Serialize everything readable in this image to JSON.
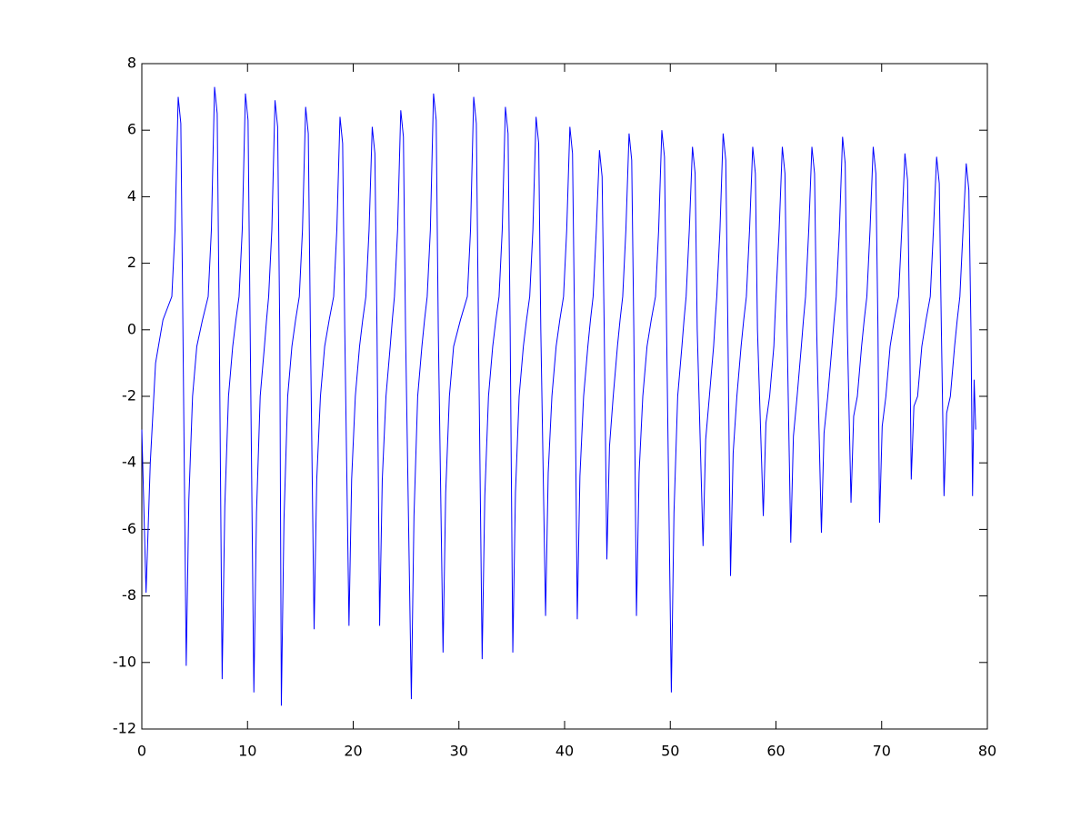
{
  "chart_data": {
    "type": "line",
    "x": [
      0,
      0.4,
      0.8,
      1.3,
      2.0,
      2.84,
      3.14,
      3.44,
      3.69,
      3.89,
      4.2,
      4.45,
      4.8,
      5.2,
      5.74,
      6.28,
      6.58,
      6.88,
      7.13,
      7.33,
      7.6,
      7.85,
      8.2,
      8.6,
      8.9,
      9.2,
      9.5,
      9.8,
      10.05,
      10.25,
      10.6,
      10.85,
      11.2,
      11.6,
      11.8,
      12.0,
      12.3,
      12.6,
      12.85,
      13.05,
      13.2,
      13.45,
      13.8,
      14.2,
      14.55,
      14.9,
      15.2,
      15.5,
      15.75,
      15.95,
      16.3,
      16.55,
      16.9,
      17.3,
      17.73,
      18.15,
      18.45,
      18.75,
      19.0,
      19.2,
      19.6,
      19.85,
      20.2,
      20.6,
      20.9,
      21.2,
      21.5,
      21.8,
      22.05,
      22.25,
      22.5,
      22.75,
      23.1,
      23.5,
      23.7,
      23.9,
      24.2,
      24.5,
      24.75,
      24.95,
      25.5,
      25.75,
      26.1,
      26.5,
      26.75,
      27.0,
      27.3,
      27.6,
      27.85,
      28.05,
      28.5,
      28.75,
      29.1,
      29.5,
      30.15,
      30.8,
      31.1,
      31.4,
      31.65,
      31.85,
      32.2,
      32.45,
      32.8,
      33.2,
      33.5,
      33.8,
      34.1,
      34.4,
      34.65,
      34.85,
      35.1,
      35.35,
      35.7,
      36.1,
      36.4,
      36.7,
      37.0,
      37.3,
      37.55,
      37.75,
      38.2,
      38.45,
      38.8,
      39.2,
      39.55,
      39.9,
      40.2,
      40.5,
      40.75,
      40.95,
      41.2,
      41.45,
      41.8,
      42.2,
      42.45,
      42.7,
      43.0,
      43.3,
      43.55,
      43.75,
      44.0,
      44.25,
      44.6,
      45.0,
      45.25,
      45.5,
      45.8,
      46.1,
      46.35,
      46.55,
      46.8,
      47.05,
      47.4,
      47.8,
      48.2,
      48.6,
      48.9,
      49.2,
      49.45,
      49.65,
      50.1,
      50.35,
      50.7,
      51.1,
      51.3,
      51.5,
      51.8,
      52.1,
      52.35,
      52.55,
      53.1,
      53.35,
      53.7,
      54.1,
      54.25,
      54.4,
      54.7,
      55.0,
      55.25,
      55.45,
      55.7,
      55.95,
      56.3,
      56.7,
      56.95,
      57.2,
      57.5,
      57.8,
      58.05,
      58.25,
      58.8,
      59.05,
      59.4,
      59.8,
      59.9,
      60.0,
      60.3,
      60.6,
      60.85,
      61.05,
      61.4,
      61.65,
      62.0,
      62.4,
      62.6,
      62.8,
      63.1,
      63.4,
      63.65,
      63.85,
      64.3,
      64.55,
      64.9,
      65.3,
      65.5,
      65.7,
      66.0,
      66.3,
      66.55,
      66.75,
      67.1,
      67.35,
      67.7,
      68.1,
      68.35,
      68.6,
      68.9,
      69.2,
      69.45,
      69.65,
      69.8,
      70.05,
      70.4,
      70.8,
      71.2,
      71.6,
      71.9,
      72.2,
      72.45,
      72.65,
      72.8,
      73.05,
      73.4,
      73.8,
      74.2,
      74.6,
      74.9,
      75.2,
      75.45,
      75.65,
      75.9,
      76.15,
      76.5,
      76.9,
      77.15,
      77.4,
      77.7,
      78.0,
      78.25,
      78.45,
      78.6,
      78.75,
      78.9
    ],
    "series": [
      {
        "color": "#0000ff",
        "values": [
          -3,
          -7.9,
          -4,
          -1,
          0.3,
          1.0,
          3,
          7.0,
          6.2,
          0,
          -10.1,
          -5.1,
          -2,
          -0.5,
          0.3,
          1.0,
          3,
          7.3,
          6.5,
          0,
          -10.5,
          -5.3,
          -2,
          -0.5,
          0.3,
          1.0,
          3,
          7.1,
          6.3,
          0,
          -10.9,
          -5.5,
          -2,
          -0.5,
          0.3,
          1.0,
          3,
          6.9,
          6.1,
          0,
          -11.3,
          -5.7,
          -2,
          -0.5,
          0.3,
          1.0,
          3,
          6.7,
          5.9,
          0,
          -9.0,
          -4.5,
          -2,
          -0.5,
          0.3,
          1.0,
          3,
          6.4,
          5.6,
          0,
          -8.9,
          -4.5,
          -2,
          -0.5,
          0.3,
          1.0,
          3,
          6.1,
          5.3,
          0,
          -8.9,
          -4.5,
          -2,
          -0.5,
          0.3,
          1.0,
          3,
          6.6,
          5.8,
          0,
          -11.1,
          -5.6,
          -2,
          -0.5,
          0.3,
          1.0,
          3,
          7.1,
          6.3,
          0,
          -9.7,
          -4.9,
          -2,
          -0.5,
          0.3,
          1.0,
          3,
          7.0,
          6.2,
          0,
          -9.9,
          -5.0,
          -2,
          -0.5,
          0.3,
          1.0,
          3,
          6.7,
          5.9,
          0,
          -9.7,
          -4.9,
          -2,
          -0.5,
          0.3,
          1.0,
          3,
          6.4,
          5.6,
          0,
          -8.6,
          -4.3,
          -2,
          -0.5,
          0.3,
          1.0,
          3,
          6.1,
          5.3,
          0,
          -8.7,
          -4.4,
          -2,
          -0.5,
          0.3,
          1.0,
          3,
          5.4,
          4.6,
          0,
          -6.9,
          -3.5,
          -2,
          -0.5,
          0.3,
          1.0,
          3,
          5.9,
          5.1,
          0,
          -8.6,
          -4.3,
          -2,
          -0.5,
          0.3,
          1.0,
          3,
          6.0,
          5.2,
          0,
          -10.9,
          -5.5,
          -2,
          -0.5,
          0.3,
          1.0,
          3,
          5.5,
          4.7,
          0,
          -6.5,
          -3.3,
          -2,
          -0.5,
          0.3,
          1.0,
          3,
          5.9,
          5.1,
          0,
          -7.4,
          -3.7,
          -2,
          -0.5,
          0.3,
          1.0,
          3,
          5.5,
          4.7,
          0,
          -5.6,
          -2.8,
          -2,
          -0.5,
          0.3,
          1.0,
          3,
          5.5,
          4.7,
          0,
          -6.4,
          -3.2,
          -2,
          -0.5,
          0.3,
          1.0,
          3,
          5.5,
          4.7,
          0,
          -6.1,
          -3.1,
          -2,
          -0.5,
          0.3,
          1.0,
          3,
          5.8,
          5.0,
          0,
          -5.2,
          -2.6,
          -2,
          -0.5,
          0.3,
          1.0,
          3,
          5.5,
          4.7,
          0,
          -5.8,
          -2.9,
          -2,
          -0.5,
          0.3,
          1.0,
          3,
          5.3,
          4.5,
          0,
          -4.5,
          -2.3,
          -2,
          -0.5,
          0.3,
          1.0,
          3,
          5.2,
          4.4,
          0,
          -5.0,
          -2.5,
          -2,
          -0.5,
          0.3,
          1.0,
          3,
          5.0,
          4.2,
          0,
          -5.0,
          -1.5,
          -3.0
        ]
      }
    ],
    "xlim": [
      0,
      80
    ],
    "xticks": [
      0,
      10,
      20,
      30,
      40,
      50,
      60,
      70,
      80
    ],
    "ylim": [
      -12,
      8
    ],
    "yticks": [
      -12,
      -10,
      -8,
      -6,
      -4,
      -2,
      0,
      2,
      4,
      6,
      8
    ]
  }
}
